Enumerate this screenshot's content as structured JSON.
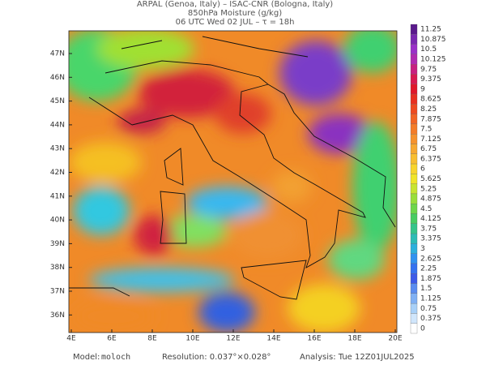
{
  "header": {
    "line1": "ARPAL (Genoa, Italy)  –  ISAC-CNR (Bologna, Italy)",
    "line2": "850hPa Moisture (g/kg)",
    "line3": "06 UTC Wed 02 JUL  –  τ = 18h"
  },
  "map": {
    "lon_labels": [
      "4E",
      "6E",
      "8E",
      "10E",
      "12E",
      "14E",
      "16E",
      "18E",
      "20E"
    ],
    "lat_labels": [
      "47N",
      "46N",
      "45N",
      "44N",
      "43N",
      "42N",
      "41N",
      "40N",
      "39N",
      "38N",
      "37N",
      "36N"
    ]
  },
  "colorbar": {
    "labels": [
      "11.25",
      "10.875",
      "10.5",
      "10.125",
      "9.75",
      "9.375",
      "9",
      "8.625",
      "8.25",
      "7.875",
      "7.5",
      "7.125",
      "6.75",
      "6.375",
      "6",
      "5.625",
      "5.25",
      "4.875",
      "4.5",
      "4.125",
      "3.75",
      "3.375",
      "3",
      "2.625",
      "2.25",
      "1.875",
      "1.5",
      "1.125",
      "0.75",
      "0.375",
      "0"
    ]
  },
  "footer": {
    "model_label": "Model:",
    "model": "moloch",
    "resolution": "Resolution: 0.037°×0.028°",
    "analysis": "Analysis: Tue 12Z01JUL2025"
  }
}
